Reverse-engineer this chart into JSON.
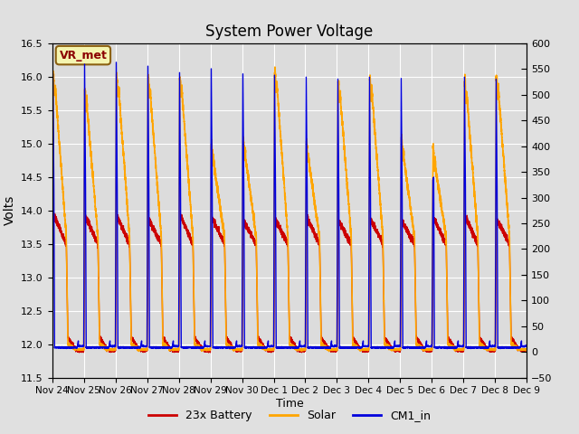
{
  "title": "System Power Voltage",
  "xlabel": "Time",
  "ylabel": "Volts",
  "ylim_left": [
    11.5,
    16.5
  ],
  "ylim_right": [
    -50,
    600
  ],
  "yticks_left": [
    11.5,
    12.0,
    12.5,
    13.0,
    13.5,
    14.0,
    14.5,
    15.0,
    15.5,
    16.0,
    16.5
  ],
  "yticks_right": [
    -50,
    0,
    50,
    100,
    150,
    200,
    250,
    300,
    350,
    400,
    450,
    500,
    550,
    600
  ],
  "xtick_labels": [
    "Nov 24",
    "Nov 25",
    "Nov 26",
    "Nov 27",
    "Nov 28",
    "Nov 29",
    "Nov 30",
    "Dec 1",
    "Dec 2",
    "Dec 3",
    "Dec 4",
    "Dec 5",
    "Dec 6",
    "Dec 7",
    "Dec 8",
    "Dec 9"
  ],
  "annotation_text": "VR_met",
  "fig_bg_color": "#e0e0e0",
  "plot_bg_color": "#dcdcdc",
  "line_colors": {
    "battery": "#cc0000",
    "solar": "#ffa500",
    "cm1": "#0000dd"
  },
  "legend_labels": [
    "23x Battery",
    "Solar",
    "CM1_in"
  ],
  "n_days": 15,
  "battery_peaks": [
    13.95,
    13.92,
    13.93,
    13.88,
    13.94,
    13.9,
    13.85,
    13.87,
    13.91,
    13.86,
    13.88,
    13.85,
    13.9,
    13.92,
    13.88
  ],
  "solar_peaks": [
    16.0,
    15.75,
    16.0,
    15.95,
    15.95,
    14.95,
    15.05,
    16.05,
    15.0,
    15.9,
    15.95,
    15.05,
    14.9,
    15.9,
    15.95
  ],
  "cm1_peaks": [
    16.1,
    16.25,
    16.28,
    16.22,
    16.12,
    16.18,
    16.1,
    16.08,
    16.05,
    16.02,
    16.05,
    16.03,
    14.45,
    16.05,
    16.02
  ],
  "battery_base": 11.9,
  "solar_base": 11.92,
  "cm1_base": 11.97,
  "linewidth_battery": 1.0,
  "linewidth_solar": 1.2,
  "linewidth_cm1": 1.0
}
